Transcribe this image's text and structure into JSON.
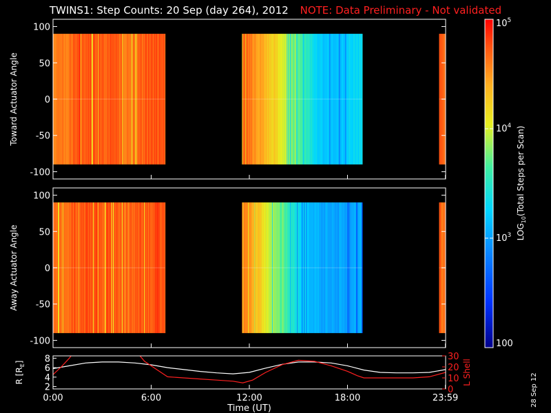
{
  "header": {
    "title": "TWINS1: Step Counts: 20 Sep (day 264), 2012",
    "note": "NOTE: Data Preliminary - Not validated"
  },
  "date_stamp": "28 Sep 12",
  "colors": {
    "background": "#000000",
    "note": "#ff2020",
    "r_line": "#ffffff",
    "lshell_line": "#ff2020",
    "frame": "#ffffff"
  },
  "chart_data": [
    {
      "type": "heatmap",
      "panel": "toward",
      "ylabel": "Toward Actuator Angle",
      "ylim": [
        -110,
        110
      ],
      "yticks": [
        100,
        50,
        0,
        -50,
        -100
      ],
      "xlim": [
        0,
        24
      ],
      "angle_range": [
        -90,
        90
      ],
      "data_segments": [
        {
          "start": 0.0,
          "end": 6.85,
          "profile": [
            4.6,
            4.6,
            4.75,
            4.75,
            4.75,
            4.7,
            4.6,
            4.7,
            4.75,
            4.75
          ]
        },
        {
          "start": 11.55,
          "end": 18.9,
          "profile": [
            4.7,
            4.55,
            4.3,
            4.05,
            3.75,
            3.45,
            3.2,
            3.15,
            3.25,
            3.35
          ]
        },
        {
          "start": 23.6,
          "end": 24.0,
          "profile": [
            4.7,
            4.6
          ]
        }
      ]
    },
    {
      "type": "heatmap",
      "panel": "away",
      "ylabel": "Away Actuator Angle",
      "ylim": [
        -110,
        110
      ],
      "yticks": [
        100,
        50,
        0,
        -50,
        -100
      ],
      "xlim": [
        0,
        24
      ],
      "angle_range": [
        -90,
        90
      ],
      "data_segments": [
        {
          "start": 0.0,
          "end": 6.85,
          "profile": [
            4.65,
            4.65,
            4.75,
            4.75,
            4.75,
            4.7,
            4.65,
            4.7,
            4.75,
            4.75
          ]
        },
        {
          "start": 11.55,
          "end": 18.9,
          "profile": [
            4.6,
            4.35,
            4.0,
            3.7,
            3.4,
            3.15,
            3.05,
            3.0,
            3.05,
            3.1
          ]
        },
        {
          "start": 23.6,
          "end": 24.0,
          "profile": [
            4.7,
            4.6
          ]
        }
      ]
    },
    {
      "type": "line",
      "panel": "orbit",
      "xlabel": "Time (UT)",
      "xlim": [
        0,
        24
      ],
      "xticks": [
        0,
        6,
        12,
        18,
        23.983
      ],
      "xtick_labels": [
        "0:00",
        "6:00",
        "12:00",
        "18:00",
        "23:59"
      ],
      "ylabel": "R [R",
      "ylabel_sub": "E",
      "ylabel_close": "]",
      "ylim": [
        1.5,
        8.5
      ],
      "yticks": [
        2,
        4,
        6,
        8
      ],
      "y2label": "L Shell",
      "y2lim": [
        0,
        30
      ],
      "y2ticks": [
        0,
        10,
        20,
        30
      ],
      "series": [
        {
          "axis": "left",
          "x": [
            0,
            1,
            2,
            3,
            4,
            5,
            6,
            7,
            8,
            9,
            10,
            11,
            12,
            13,
            14,
            15,
            16,
            17,
            18,
            19,
            20,
            21,
            22,
            23,
            24
          ],
          "y": [
            5.8,
            6.4,
            7.0,
            7.2,
            7.2,
            7.0,
            6.6,
            6.0,
            5.6,
            5.2,
            4.9,
            4.7,
            5.0,
            5.9,
            6.7,
            7.2,
            7.2,
            7.0,
            6.4,
            5.5,
            5.0,
            4.9,
            4.9,
            5.0,
            5.6
          ]
        },
        {
          "axis": "right",
          "x": [
            0,
            0.5,
            1,
            1.2,
            5.2,
            5.6,
            6.3,
            7.0,
            8.0,
            9.0,
            10.0,
            11.0,
            11.6,
            12.2,
            13.0,
            14.0,
            15.0,
            16.0,
            17.0,
            18.0,
            18.6,
            19.0,
            20.0,
            22.0,
            23.0,
            24.0
          ],
          "y": [
            13,
            20,
            28,
            32,
            32,
            25,
            18,
            11,
            10,
            9,
            8,
            7,
            5.5,
            8,
            15,
            22,
            26,
            25,
            21,
            16,
            12,
            10,
            10,
            10,
            11,
            15
          ]
        }
      ]
    },
    {
      "type": "colorbar",
      "label": "LOG",
      "label_sub": "10",
      "label_rest": "(Total Steps per Scan)",
      "scale": "log",
      "range": [
        100,
        100000
      ],
      "tick_labels": [
        {
          "base": "10",
          "exp": "5",
          "value": 100000
        },
        {
          "base": "10",
          "exp": "4",
          "value": 10000
        },
        {
          "base": "10",
          "exp": "3",
          "value": 1000
        },
        {
          "base": "100",
          "exp": "",
          "value": 100
        }
      ]
    }
  ]
}
